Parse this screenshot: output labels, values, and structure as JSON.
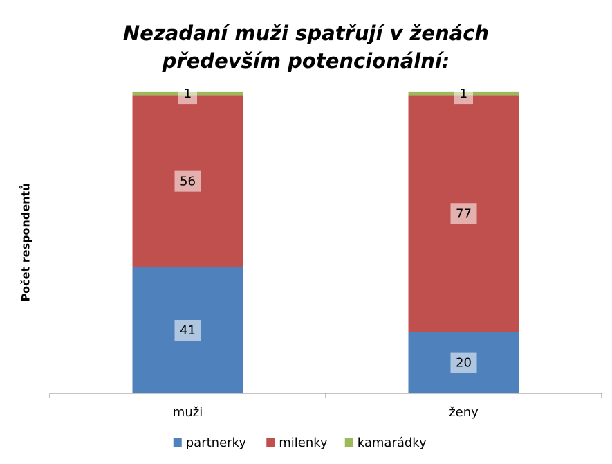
{
  "chart_data": {
    "type": "stacked_bar",
    "title": "Nezadaní muži spatřují v ženách především potencionální:",
    "y_label": "Počet respondentů",
    "categories": [
      "muži",
      "ženy"
    ],
    "series": [
      {
        "name": "partnerky",
        "color": "#4f81bd",
        "values": [
          41,
          20
        ]
      },
      {
        "name": "milenky",
        "color": "#c0504d",
        "values": [
          56,
          77
        ]
      },
      {
        "name": "kamarádky",
        "color": "#9bbb59",
        "values": [
          1,
          1
        ]
      }
    ],
    "ylim": [
      0,
      100
    ],
    "legend": "bottom"
  }
}
